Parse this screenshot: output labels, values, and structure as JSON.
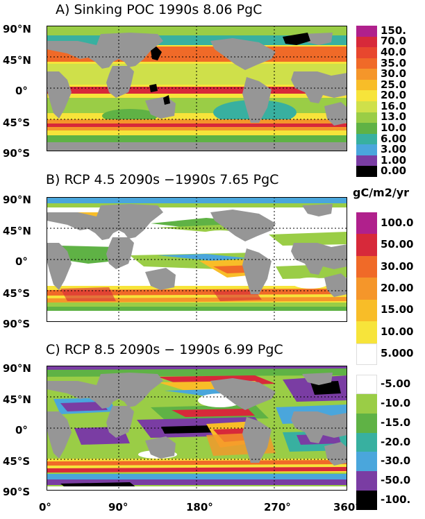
{
  "panels": [
    {
      "title": "A) Sinking POC 1990s 8.06 PgC",
      "colorbar": {
        "labels": [
          "150.",
          "70.0",
          "40.0",
          "35.0",
          "30.0",
          "25.0",
          "20.0",
          "16.0",
          "13.0",
          "10.0",
          "6.00",
          "3.00",
          "1.00",
          "0.00"
        ],
        "colors": [
          "#b0208c",
          "#d7293a",
          "#e8472e",
          "#f06a28",
          "#f5962a",
          "#f8bd28",
          "#f7e43a",
          "#cfe04a",
          "#9acd46",
          "#5fb245",
          "#38b0a0",
          "#4aa6dc",
          "#7a3da3",
          "#000000"
        ]
      }
    },
    {
      "title": "B) RCP 4.5 2090s −1990s 7.65 PgC",
      "colorbar": {
        "labels": [
          "100.0",
          "50.00",
          "30.00",
          "20.00",
          "15.00",
          "10.00",
          "5.000"
        ],
        "colors": [
          "#b0208c",
          "#d7293a",
          "#f06a28",
          "#f5962a",
          "#f8bd28",
          "#f7e43a",
          "#ffffff"
        ]
      }
    },
    {
      "title": "C) RCP 8.5 2090s − 1990s 6.99 PgC",
      "colorbar": {
        "labels": [
          "-5.00",
          "-10.0",
          "-15.0",
          "-20.0",
          "-30.0",
          "-50.0",
          "-100."
        ],
        "colors": [
          "#ffffff",
          "#9acd46",
          "#5fb245",
          "#38b0a0",
          "#4aa6dc",
          "#7a3da3",
          "#000000"
        ]
      }
    }
  ],
  "units": "gC/m2/yr",
  "lat_labels": [
    "90°N",
    "45°N",
    "0°",
    "45°S",
    "90°S"
  ],
  "lon_labels": [
    "0°",
    "90°",
    "180°",
    "270°",
    "360°"
  ],
  "colors": {
    "land": "#969696",
    "grid": "#000000"
  }
}
